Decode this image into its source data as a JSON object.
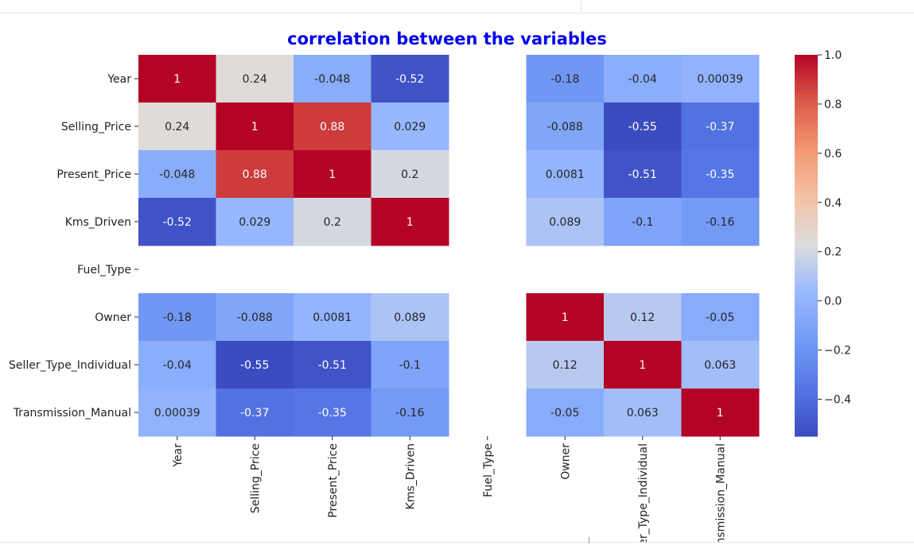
{
  "chart_data": {
    "type": "heatmap",
    "title": "correlation between the variables",
    "x_labels": [
      "Year",
      "Selling_Price",
      "Present_Price",
      "Kms_Driven",
      "Fuel_Type",
      "Owner",
      "Seller_Type_Individual",
      "Transmission_Manual"
    ],
    "y_labels": [
      "Year",
      "Selling_Price",
      "Present_Price",
      "Kms_Driven",
      "Fuel_Type",
      "Owner",
      "Seller_Type_Individual",
      "Transmission_Manual"
    ],
    "values": [
      [
        1,
        0.24,
        -0.048,
        -0.52,
        null,
        -0.18,
        -0.04,
        0.00039
      ],
      [
        0.24,
        1,
        0.88,
        0.029,
        null,
        -0.088,
        -0.55,
        -0.37
      ],
      [
        -0.048,
        0.88,
        1,
        0.2,
        null,
        0.0081,
        -0.51,
        -0.35
      ],
      [
        -0.52,
        0.029,
        0.2,
        1,
        null,
        0.089,
        -0.1,
        -0.16
      ],
      [
        null,
        null,
        null,
        null,
        null,
        null,
        null,
        null
      ],
      [
        -0.18,
        -0.088,
        0.0081,
        0.089,
        null,
        1,
        0.12,
        -0.05
      ],
      [
        -0.04,
        -0.55,
        -0.51,
        -0.1,
        null,
        0.12,
        1,
        0.063
      ],
      [
        0.00039,
        -0.37,
        -0.35,
        -0.16,
        null,
        -0.05,
        0.063,
        1
      ]
    ],
    "annotations": [
      [
        "1",
        "0.24",
        "-0.048",
        "-0.52",
        "",
        "-0.18",
        "-0.04",
        "0.00039"
      ],
      [
        "0.24",
        "1",
        "0.88",
        "0.029",
        "",
        "-0.088",
        "-0.55",
        "-0.37"
      ],
      [
        "-0.048",
        "0.88",
        "1",
        "0.2",
        "",
        "0.0081",
        "-0.51",
        "-0.35"
      ],
      [
        "-0.52",
        "0.029",
        "0.2",
        "1",
        "",
        "0.089",
        "-0.1",
        "-0.16"
      ],
      [
        "",
        "",
        "",
        "",
        "",
        "",
        "",
        ""
      ],
      [
        "-0.18",
        "-0.088",
        "0.0081",
        "0.089",
        "",
        "1",
        "0.12",
        "-0.05"
      ],
      [
        "-0.04",
        "-0.55",
        "-0.51",
        "-0.1",
        "",
        "0.12",
        "1",
        "0.063"
      ],
      [
        "0.00039",
        "-0.37",
        "-0.35",
        "-0.16",
        "",
        "-0.05",
        "0.063",
        "1"
      ]
    ],
    "colormap": "coolwarm",
    "vmin": -0.55,
    "vmax": 1.0,
    "colorbar_ticks": [
      1.0,
      0.8,
      0.6,
      0.4,
      0.2,
      0.0,
      -0.2,
      -0.4
    ],
    "colorbar_tick_labels": [
      "1.0",
      "0.8",
      "0.6",
      "0.4",
      "0.2",
      "0.0",
      "−0.2",
      "−0.4"
    ],
    "grid": false,
    "legend_placement": "right"
  }
}
